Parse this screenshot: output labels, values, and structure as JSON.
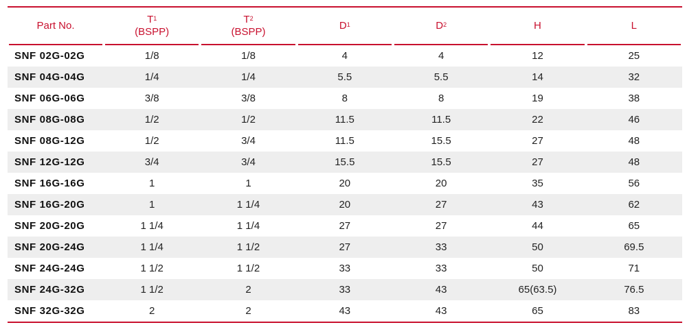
{
  "header": {
    "part_no": "Part No.",
    "t1": "T",
    "t1_sub": "1",
    "t1_note": "(BSPP)",
    "t2": "T",
    "t2_sub": "2",
    "t2_note": "(BSPP)",
    "d1": "D",
    "d1_sub": "1",
    "d2": "D",
    "d2_sub": "2",
    "h": "H",
    "l": "L"
  },
  "colors": {
    "accent": "#c8102e",
    "row_alt": "#eeeeee"
  },
  "rows": [
    [
      "SNF 02G-02G",
      "1/8",
      "1/8",
      "4",
      "4",
      "12",
      "25"
    ],
    [
      "SNF 04G-04G",
      "1/4",
      "1/4",
      "5.5",
      "5.5",
      "14",
      "32"
    ],
    [
      "SNF 06G-06G",
      "3/8",
      "3/8",
      "8",
      "8",
      "19",
      "38"
    ],
    [
      "SNF 08G-08G",
      "1/2",
      "1/2",
      "11.5",
      "11.5",
      "22",
      "46"
    ],
    [
      "SNF 08G-12G",
      "1/2",
      "3/4",
      "11.5",
      "15.5",
      "27",
      "48"
    ],
    [
      "SNF 12G-12G",
      "3/4",
      "3/4",
      "15.5",
      "15.5",
      "27",
      "48"
    ],
    [
      "SNF 16G-16G",
      "1",
      "1",
      "20",
      "20",
      "35",
      "56"
    ],
    [
      "SNF 16G-20G",
      "1",
      "1 1/4",
      "20",
      "27",
      "43",
      "62"
    ],
    [
      "SNF 20G-20G",
      "1 1/4",
      "1 1/4",
      "27",
      "27",
      "44",
      "65"
    ],
    [
      "SNF 20G-24G",
      "1 1/4",
      "1 1/2",
      "27",
      "33",
      "50",
      "69.5"
    ],
    [
      "SNF 24G-24G",
      "1 1/2",
      "1 1/2",
      "33",
      "33",
      "50",
      "71"
    ],
    [
      "SNF 24G-32G",
      "1 1/2",
      "2",
      "33",
      "43",
      "65(63.5)",
      "76.5"
    ],
    [
      "SNF 32G-32G",
      "2",
      "2",
      "43",
      "43",
      "65",
      "83"
    ]
  ]
}
